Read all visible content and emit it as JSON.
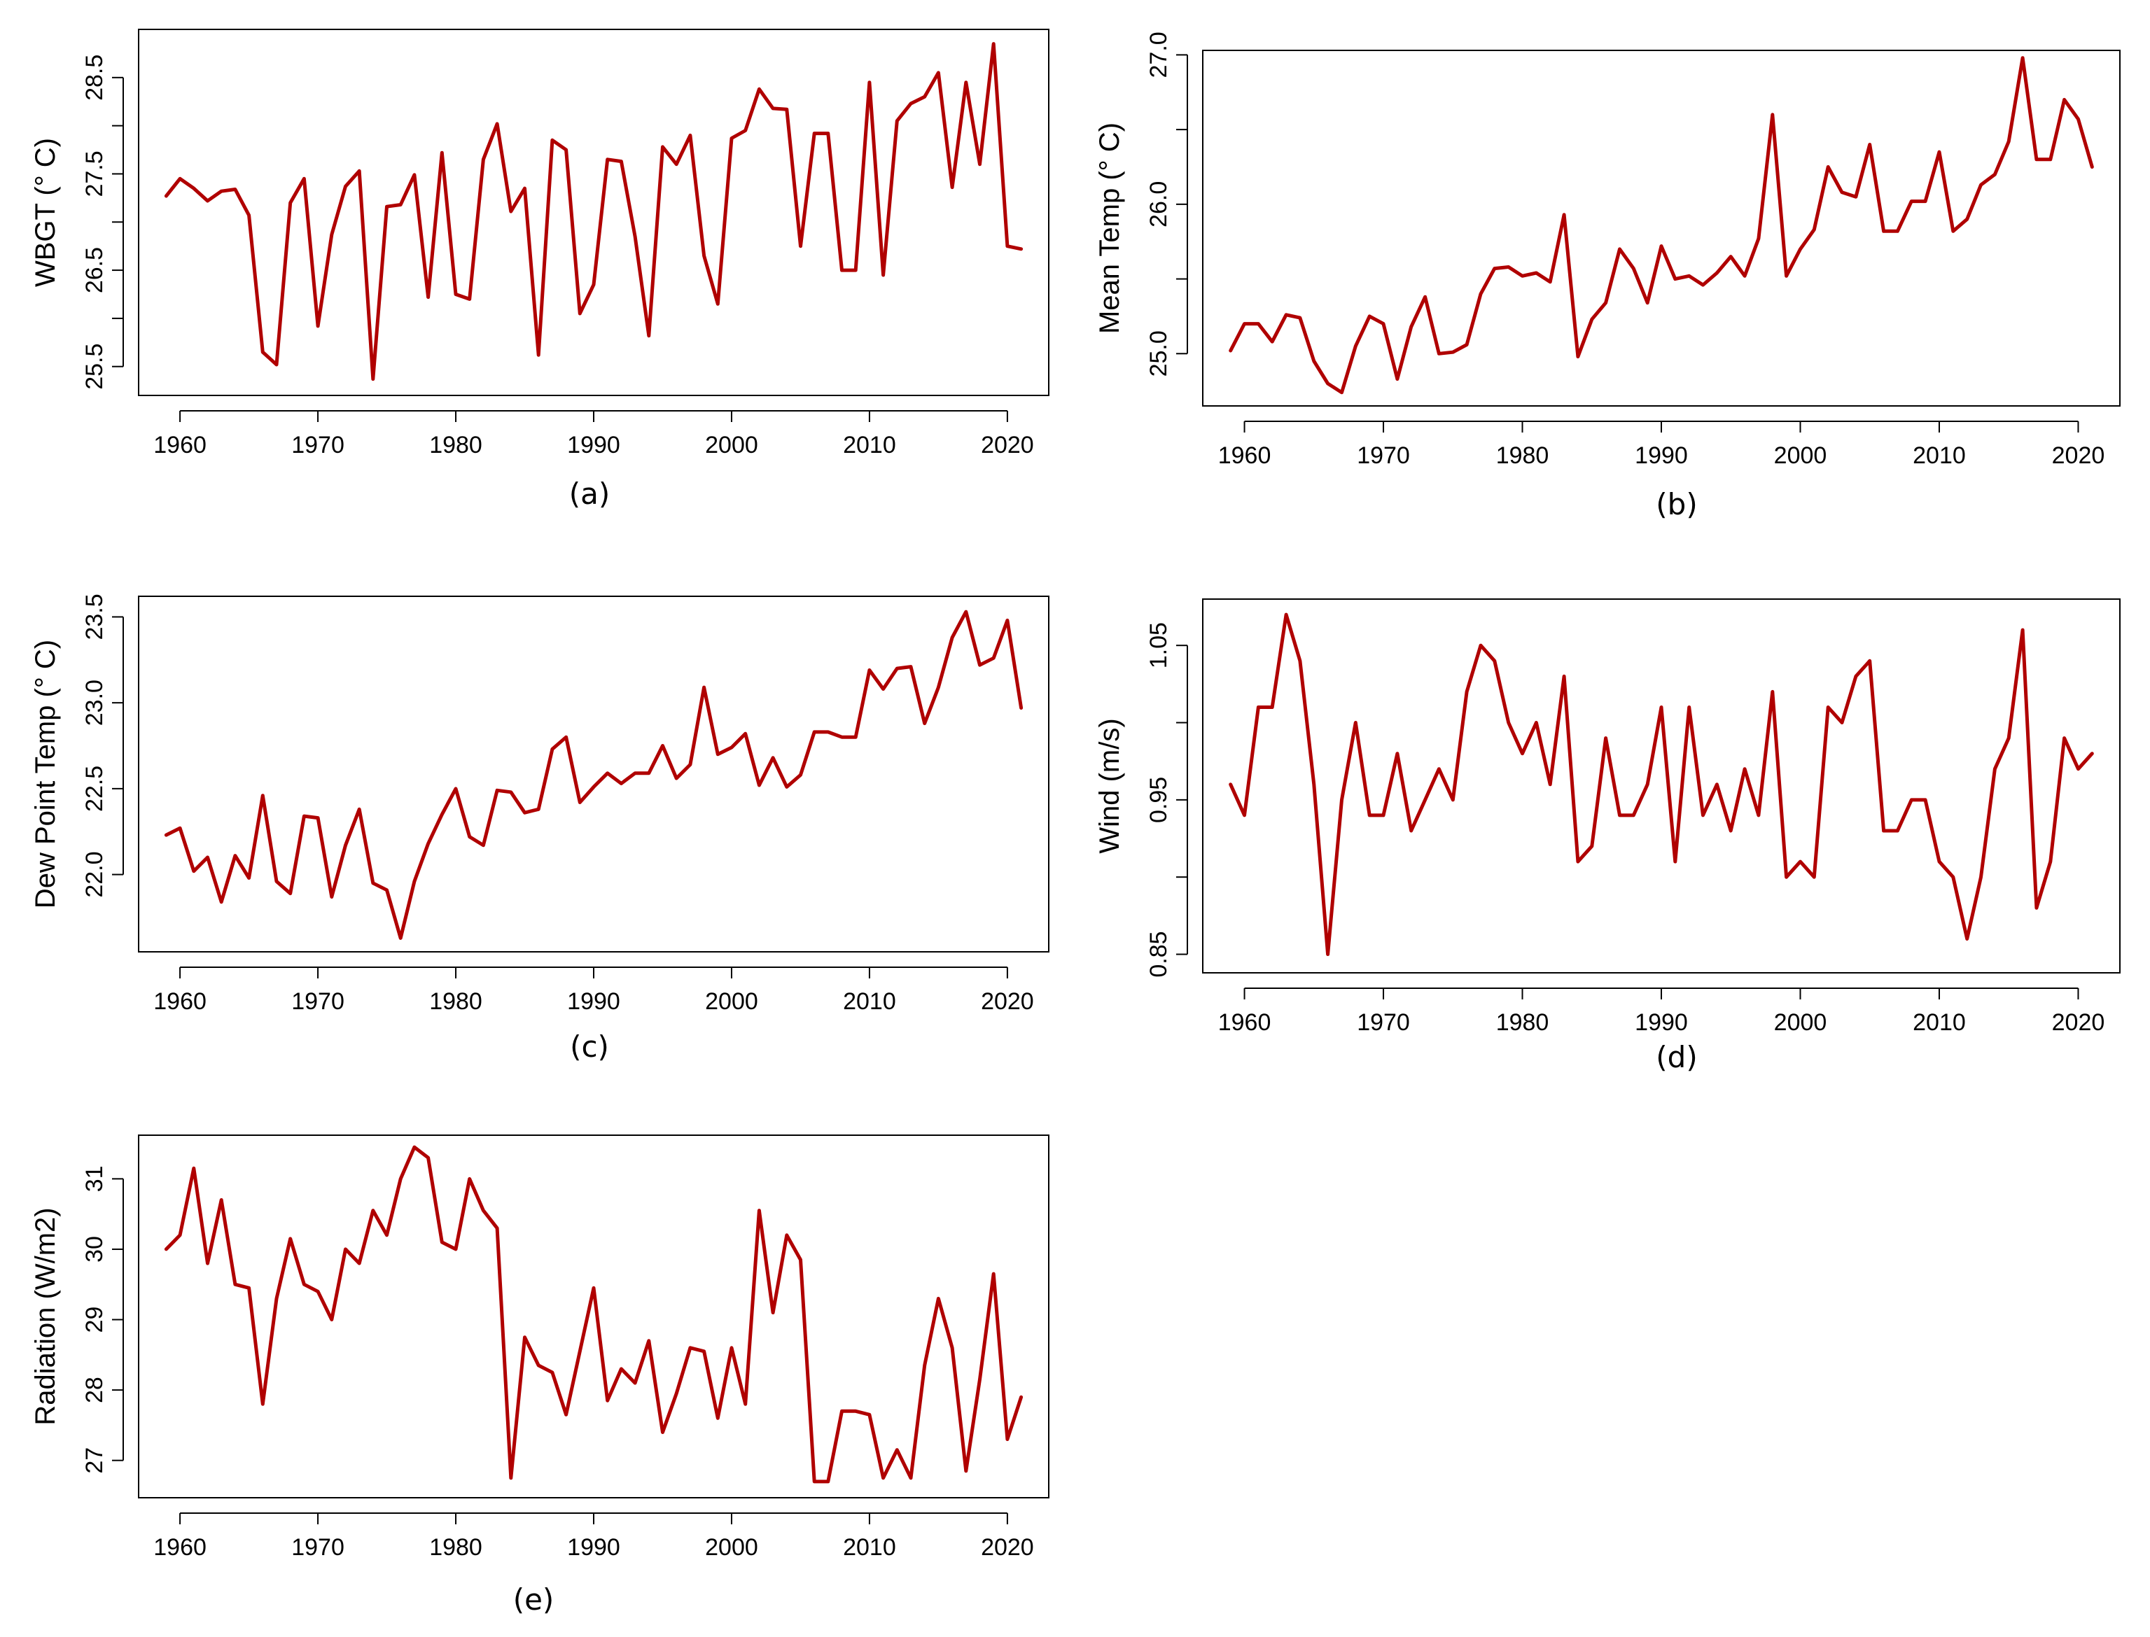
{
  "style": {
    "line_color": "#b00000",
    "axis_color": "#000000"
  },
  "chart_data": [
    {
      "type": "line",
      "caption": "(a)",
      "ylabel": "WBGT (° C)",
      "xlabel": "",
      "x_start": 1959,
      "xlim": [
        1957,
        2023
      ],
      "ylim": [
        25.2,
        29.0
      ],
      "xticks": [
        1960,
        1970,
        1980,
        1990,
        2000,
        2010,
        2020
      ],
      "yticks": [
        25.5,
        26.5,
        27.5,
        28.5
      ],
      "yticks_minor": [
        26.0,
        27.0,
        28.0
      ],
      "ytick_labels": [
        "25.5",
        "26.5",
        "27.5",
        "28.5"
      ],
      "values": [
        27.27,
        27.45,
        27.35,
        27.22,
        27.32,
        27.34,
        27.07,
        25.65,
        25.52,
        27.2,
        27.45,
        25.92,
        26.87,
        27.37,
        27.53,
        25.37,
        27.16,
        27.18,
        27.49,
        26.22,
        27.72,
        26.25,
        26.2,
        27.65,
        28.02,
        27.11,
        27.35,
        25.62,
        27.85,
        27.75,
        26.05,
        26.35,
        27.65,
        27.63,
        26.85,
        25.82,
        27.78,
        27.6,
        27.9,
        26.65,
        26.15,
        27.87,
        27.95,
        28.38,
        28.18,
        28.17,
        26.75,
        27.92,
        27.92,
        26.5,
        26.5,
        28.45,
        26.45,
        28.05,
        28.23,
        28.3,
        28.55,
        27.36,
        28.45,
        27.6,
        28.85,
        26.75,
        26.72
      ]
    },
    {
      "type": "line",
      "caption": "(b)",
      "ylabel": "Mean Temp (° C)",
      "xlabel": "",
      "x_start": 1959,
      "xlim": [
        1957,
        2023
      ],
      "ylim": [
        24.65,
        27.03
      ],
      "xticks": [
        1960,
        1970,
        1980,
        1990,
        2000,
        2010,
        2020
      ],
      "yticks": [
        25.0,
        26.0,
        27.0
      ],
      "yticks_minor": [
        25.5,
        26.5
      ],
      "ytick_labels": [
        "25.0",
        "26.0",
        "27.0"
      ],
      "values": [
        25.02,
        25.2,
        25.2,
        25.08,
        25.26,
        25.24,
        24.95,
        24.8,
        24.74,
        25.05,
        25.25,
        25.2,
        24.83,
        25.18,
        25.38,
        25.0,
        25.01,
        25.06,
        25.4,
        25.57,
        25.58,
        25.52,
        25.54,
        25.48,
        25.93,
        24.98,
        25.23,
        25.34,
        25.7,
        25.57,
        25.34,
        25.72,
        25.5,
        25.52,
        25.46,
        25.54,
        25.65,
        25.52,
        25.77,
        26.6,
        25.52,
        25.7,
        25.83,
        26.25,
        26.08,
        26.05,
        26.4,
        25.82,
        25.82,
        26.02,
        26.02,
        26.35,
        25.82,
        25.9,
        26.13,
        26.2,
        26.42,
        26.98,
        26.3,
        26.3,
        26.7,
        26.57,
        26.25
      ]
    },
    {
      "type": "line",
      "caption": "(c)",
      "ylabel": "Dew Point Temp (° C)",
      "xlabel": "",
      "x_start": 1959,
      "xlim": [
        1957,
        2023
      ],
      "ylim": [
        21.55,
        23.62
      ],
      "xticks": [
        1960,
        1970,
        1980,
        1990,
        2000,
        2010,
        2020
      ],
      "yticks": [
        22.0,
        22.5,
        23.0,
        23.5
      ],
      "yticks_minor": [],
      "ytick_labels": [
        "22.0",
        "22.5",
        "23.0",
        "23.5"
      ],
      "values": [
        22.23,
        22.27,
        22.02,
        22.1,
        21.84,
        22.11,
        21.98,
        22.46,
        21.96,
        21.89,
        22.34,
        22.33,
        21.87,
        22.17,
        22.38,
        21.95,
        21.91,
        21.63,
        21.96,
        22.18,
        22.35,
        22.5,
        22.22,
        22.17,
        22.49,
        22.48,
        22.36,
        22.38,
        22.73,
        22.8,
        22.42,
        22.51,
        22.59,
        22.53,
        22.59,
        22.59,
        22.75,
        22.56,
        22.64,
        23.09,
        22.7,
        22.74,
        22.82,
        22.52,
        22.68,
        22.51,
        22.58,
        22.83,
        22.83,
        22.8,
        22.8,
        23.19,
        23.08,
        23.2,
        23.21,
        22.88,
        23.09,
        23.38,
        23.53,
        23.22,
        23.26,
        23.48,
        22.97
      ]
    },
    {
      "type": "line",
      "caption": "(d)",
      "ylabel": "Wind (m/s)",
      "xlabel": "",
      "x_start": 1959,
      "xlim": [
        1957,
        2023
      ],
      "ylim": [
        0.838,
        1.08
      ],
      "xticks": [
        1960,
        1970,
        1980,
        1990,
        2000,
        2010,
        2020
      ],
      "yticks": [
        0.85,
        0.95,
        1.05
      ],
      "yticks_minor": [
        0.9,
        1.0
      ],
      "ytick_labels": [
        "0.85",
        "0.95",
        "1.05"
      ],
      "values": [
        0.96,
        0.94,
        1.01,
        1.01,
        1.07,
        1.04,
        0.96,
        0.85,
        0.95,
        1.0,
        0.94,
        0.94,
        0.98,
        0.93,
        0.95,
        0.97,
        0.95,
        1.02,
        1.05,
        1.04,
        1.0,
        0.98,
        1.0,
        0.96,
        1.03,
        0.91,
        0.92,
        0.99,
        0.94,
        0.94,
        0.96,
        1.01,
        0.91,
        1.01,
        0.94,
        0.96,
        0.93,
        0.97,
        0.94,
        1.02,
        0.9,
        0.91,
        0.9,
        1.01,
        1.0,
        1.03,
        1.04,
        0.93,
        0.93,
        0.95,
        0.95,
        0.91,
        0.9,
        0.86,
        0.9,
        0.97,
        0.99,
        1.06,
        0.88,
        0.91,
        0.99,
        0.97,
        0.98
      ]
    },
    {
      "type": "line",
      "caption": "(e)",
      "ylabel": "Radiation (W/m2)",
      "xlabel": "",
      "x_start": 1959,
      "xlim": [
        1957,
        2023
      ],
      "ylim": [
        26.47,
        31.62
      ],
      "xticks": [
        1960,
        1970,
        1980,
        1990,
        2000,
        2010,
        2020
      ],
      "yticks": [
        27,
        28,
        29,
        30,
        31
      ],
      "yticks_minor": [],
      "ytick_labels": [
        "27",
        "28",
        "29",
        "30",
        "31"
      ],
      "values": [
        30.0,
        30.2,
        31.15,
        29.8,
        30.7,
        29.5,
        29.45,
        27.8,
        29.3,
        30.15,
        29.5,
        29.4,
        29.0,
        30.0,
        29.8,
        30.55,
        30.2,
        31.0,
        31.45,
        31.3,
        30.1,
        30.0,
        31.0,
        30.55,
        30.3,
        26.75,
        28.75,
        28.35,
        28.25,
        27.65,
        28.55,
        29.45,
        27.85,
        28.3,
        28.1,
        28.7,
        27.4,
        27.95,
        28.6,
        28.55,
        27.6,
        28.6,
        27.8,
        30.55,
        29.1,
        30.2,
        29.85,
        26.7,
        26.7,
        27.7,
        27.7,
        27.65,
        26.75,
        27.15,
        26.75,
        28.35,
        29.3,
        28.6,
        26.85,
        28.15,
        29.65,
        27.3,
        27.9
      ]
    }
  ]
}
